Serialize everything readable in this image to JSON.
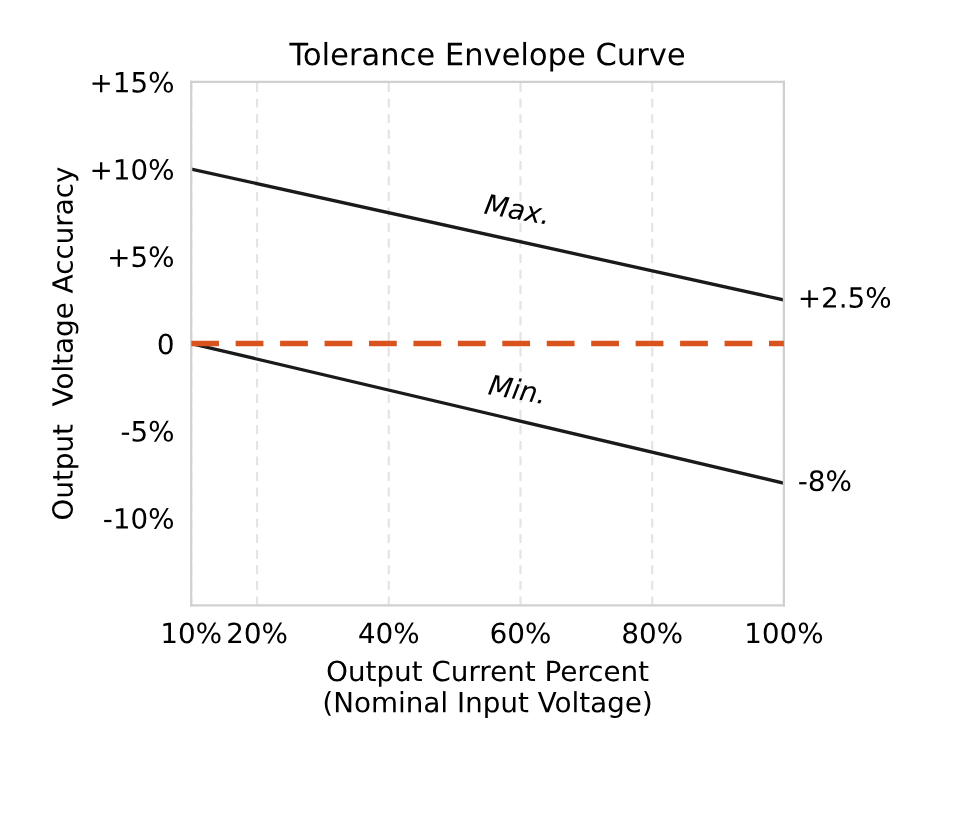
{
  "chart_data": {
    "type": "line",
    "title": "Tolerance Envelope Curve",
    "xlabel": "Output Current Percent\n(Nominal Input Voltage)",
    "ylabel": "Output  Voltage Accuracy",
    "x": [
      10,
      100
    ],
    "series": [
      {
        "name": "Max.",
        "color": "#1a1a1a",
        "values": [
          10,
          2.5
        ],
        "value_labels": [
          null,
          "+2.5%"
        ]
      },
      {
        "name": "Min.",
        "color": "#1a1a1a",
        "values": [
          0,
          -8
        ],
        "value_labels": [
          null,
          "-8%"
        ]
      }
    ],
    "xlim": [
      10,
      100
    ],
    "xticks": [
      {
        "value": 10,
        "label": "10%"
      },
      {
        "value": 20,
        "label": "20%"
      },
      {
        "value": 40,
        "label": "40%"
      },
      {
        "value": 60,
        "label": "60%"
      },
      {
        "value": 80,
        "label": "80%"
      },
      {
        "value": 100,
        "label": "100%"
      }
    ],
    "ylim": [
      -15,
      15
    ],
    "yticks": [
      {
        "value": 15,
        "label": "+15%"
      },
      {
        "value": 10,
        "label": "+10%"
      },
      {
        "value": 5,
        "label": "+5%"
      },
      0,
      {
        "value": -5,
        "label": "-5%"
      },
      {
        "value": -10,
        "label": "-10%"
      }
    ],
    "ref_lines": [
      {
        "axis": "y",
        "value": 0,
        "color": "#d9531e",
        "line_style": "dashed"
      }
    ],
    "grid": "x",
    "line_style": "solid",
    "marker": "none"
  }
}
